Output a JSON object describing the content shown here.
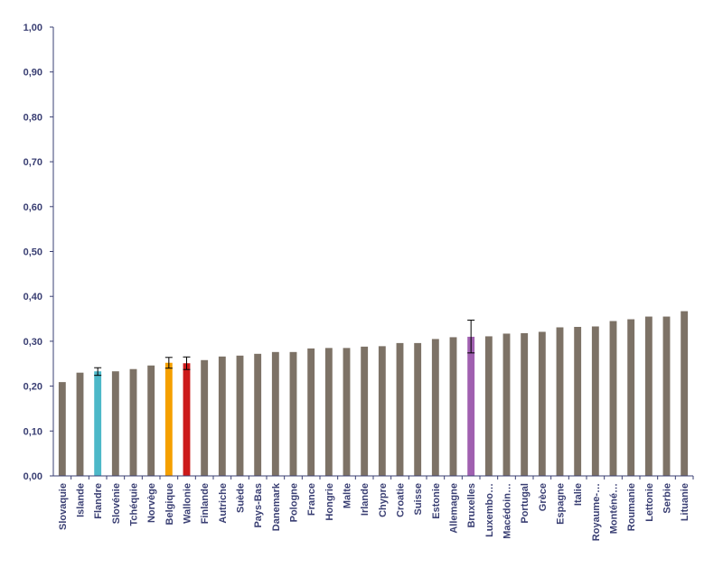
{
  "chart_data": {
    "type": "bar",
    "title": "",
    "xlabel": "",
    "ylabel": "",
    "ylim": [
      0,
      1
    ],
    "y_ticks": [
      "0,00",
      "0,10",
      "0,20",
      "0,30",
      "0,40",
      "0,50",
      "0,60",
      "0,70",
      "0,80",
      "0,90",
      "1,00"
    ],
    "grid": false,
    "colors": {
      "default": "#7d7266",
      "Flandre": "#4db8c8",
      "Belgique": "#f5a000",
      "Wallonie": "#cc1a1a",
      "Bruxelles": "#a060b0",
      "axis": "#3a3f73",
      "errorbar": "#000000"
    },
    "categories": [
      "Slovaquie",
      "Islande",
      "Flandre",
      "Slovénie",
      "Tchéquie",
      "Norvège",
      "Belgique",
      "Wallonie",
      "Finlande",
      "Autriche",
      "Suède",
      "Pays-Bas",
      "Danemark",
      "Pologne",
      "France",
      "Hongrie",
      "Malte",
      "Irlande",
      "Chypre",
      "Croatie",
      "Suisse",
      "Estonie",
      "Allemagne",
      "Bruxelles",
      "Luxembo…",
      "Macédoin…",
      "Portugal",
      "Grèce",
      "Espagne",
      "Italie",
      "Royaume-…",
      "Monténé…",
      "Roumanie",
      "Lettonie",
      "Serbie",
      "Lituanie"
    ],
    "values": [
      0.209,
      0.23,
      0.233,
      0.233,
      0.238,
      0.246,
      0.252,
      0.251,
      0.258,
      0.266,
      0.268,
      0.272,
      0.276,
      0.276,
      0.284,
      0.285,
      0.285,
      0.288,
      0.289,
      0.296,
      0.296,
      0.305,
      0.309,
      0.31,
      0.311,
      0.317,
      0.318,
      0.321,
      0.331,
      0.332,
      0.333,
      0.345,
      0.349,
      0.355,
      0.355,
      0.367
    ],
    "error_bars": {
      "Flandre": [
        0.224,
        0.241
      ],
      "Belgique": [
        0.24,
        0.264
      ],
      "Wallonie": [
        0.237,
        0.265
      ],
      "Bruxelles": [
        0.274,
        0.347
      ]
    }
  }
}
